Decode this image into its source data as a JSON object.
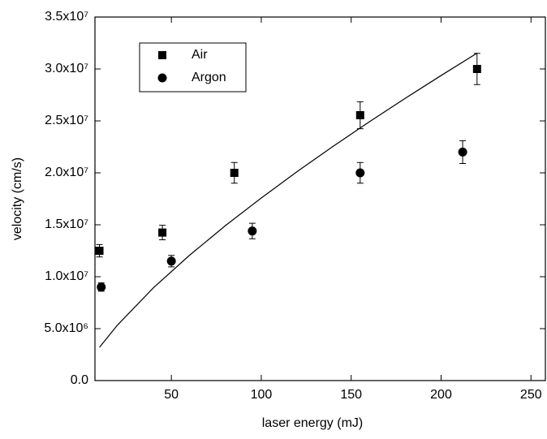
{
  "chart_data": {
    "type": "scatter",
    "xlabel": "laser energy (mJ)",
    "ylabel": "velocity (cm/s)",
    "xlim": [
      7.5,
      258
    ],
    "ylim": [
      0,
      35000000
    ],
    "xticks": [
      50,
      100,
      150,
      200,
      250
    ],
    "yticks": [
      {
        "value": 0,
        "label": "0.0"
      },
      {
        "value": 5000000,
        "label": "5.0x10⁶"
      },
      {
        "value": 10000000,
        "label": "1.0x10⁷"
      },
      {
        "value": 15000000,
        "label": "1.5x10⁷"
      },
      {
        "value": 20000000,
        "label": "2.0x10⁷"
      },
      {
        "value": 25000000,
        "label": "2.5x10⁷"
      },
      {
        "value": 30000000,
        "label": "3.0x10⁷"
      },
      {
        "value": 35000000,
        "label": "3.5x10⁷"
      }
    ],
    "legend": "upper left",
    "series": [
      {
        "name": "Air",
        "marker": "square",
        "color": "#000000",
        "x": [
          10,
          45,
          85,
          155,
          220
        ],
        "values": [
          12500000,
          14250000,
          20000000,
          25550000,
          30000000
        ],
        "errors": [
          600000,
          700000,
          1000000,
          1300000,
          1500000
        ]
      },
      {
        "name": "Argon",
        "marker": "circle",
        "color": "#000000",
        "x": [
          11,
          50,
          95,
          155,
          212
        ],
        "values": [
          9000000,
          11500000,
          14400000,
          20000000,
          22000000
        ],
        "errors": [
          400000,
          550000,
          750000,
          1000000,
          1100000
        ]
      },
      {
        "type": "line",
        "color": "#000000",
        "x": [
          10,
          20,
          40,
          60,
          80,
          100,
          120,
          140,
          160,
          180,
          200,
          220
        ],
        "values": [
          3200000,
          5340000,
          8930000,
          12050000,
          14910000,
          17580000,
          20130000,
          22560000,
          24900000,
          27170000,
          29370000,
          31520000
        ]
      }
    ]
  }
}
